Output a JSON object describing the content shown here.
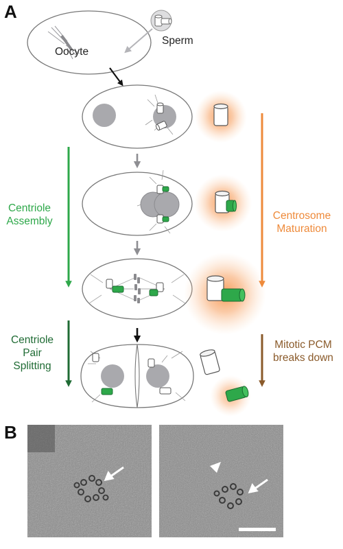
{
  "panels": {
    "a": "A",
    "b": "B"
  },
  "labels": {
    "oocyte": "Oocyte",
    "sperm": "Sperm",
    "centriole_assembly": "Centriole\nAssembly",
    "centrosome_maturation": "Centrosome\nMaturation",
    "centriole_pair_splitting": "Centriole\nPair\nSplitting",
    "mitotic_pcm_breaks_down": "Mitotic PCM\nbreaks down"
  },
  "colors": {
    "green": "#2ea84a",
    "dark_green": "#1f6b34",
    "orange": "#ee8a3a",
    "brown": "#8a5a2a",
    "pcm_glow": "#f58a3c",
    "nucleus": "#a9a9ad",
    "cell_outline": "#777777"
  },
  "icons": {
    "flow_arrow": "down-arrow",
    "centriole": "cylinder",
    "micrograph_marker": "white-arrow",
    "micrograph_arrowhead": "white-arrowhead",
    "scale_bar": "white-bar"
  }
}
